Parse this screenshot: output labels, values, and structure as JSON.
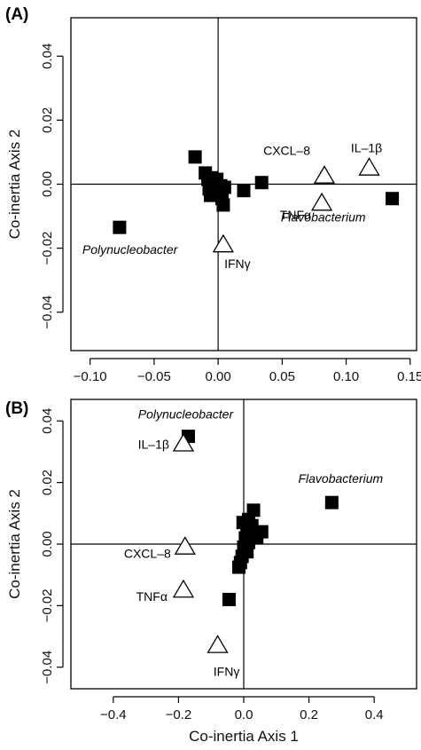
{
  "chart_data": [
    {
      "type": "scatter",
      "panel_label": "(A)",
      "xlabel": "",
      "ylabel": "Co-inertia Axis 2",
      "xlim": [
        -0.115,
        0.155
      ],
      "ylim": [
        -0.052,
        0.052
      ],
      "xticks": [
        -0.1,
        -0.05,
        0.0,
        0.05,
        0.1,
        0.15
      ],
      "xtick_labels": [
        "−0.10",
        "−0.05",
        "0.00",
        "0.05",
        "0.10",
        "0.15"
      ],
      "yticks": [
        -0.04,
        -0.02,
        0.0,
        0.02,
        0.04
      ],
      "ytick_labels": [
        "−0.04",
        "−0.02",
        "0.00",
        "0.02",
        "0.04"
      ],
      "grid": false,
      "series": [
        {
          "marker": "filled-square",
          "points": [
            {
              "x": -0.077,
              "y": -0.0135,
              "label": "Polynucleobacter"
            },
            {
              "x": -0.018,
              "y": 0.0085,
              "label": ""
            },
            {
              "x": -0.01,
              "y": 0.0035,
              "label": ""
            },
            {
              "x": -0.008,
              "y": 0.0015,
              "label": ""
            },
            {
              "x": -0.007,
              "y": -0.0015,
              "label": ""
            },
            {
              "x": -0.006,
              "y": -0.0035,
              "label": ""
            },
            {
              "x": -0.005,
              "y": 0.002,
              "label": ""
            },
            {
              "x": -0.004,
              "y": -0.002,
              "label": ""
            },
            {
              "x": -0.003,
              "y": 0.0005,
              "label": ""
            },
            {
              "x": -0.002,
              "y": -0.001,
              "label": ""
            },
            {
              "x": -0.001,
              "y": 0.0015,
              "label": ""
            },
            {
              "x": 0.001,
              "y": -0.0025,
              "label": ""
            },
            {
              "x": 0.002,
              "y": -0.0005,
              "label": ""
            },
            {
              "x": 0.003,
              "y": -0.0045,
              "label": ""
            },
            {
              "x": 0.004,
              "y": -0.0065,
              "label": ""
            },
            {
              "x": 0.005,
              "y": -0.001,
              "label": ""
            },
            {
              "x": 0.02,
              "y": -0.002,
              "label": ""
            },
            {
              "x": 0.034,
              "y": 0.0005,
              "label": ""
            },
            {
              "x": 0.136,
              "y": -0.0045,
              "label": "Flavobacterium"
            }
          ]
        },
        {
          "marker": "open-triangle",
          "points": [
            {
              "x": 0.083,
              "y": 0.0025,
              "label": "CXCL–8"
            },
            {
              "x": 0.118,
              "y": 0.005,
              "label": "IL–1β"
            },
            {
              "x": 0.081,
              "y": -0.006,
              "label": "TNFα"
            },
            {
              "x": 0.004,
              "y": -0.019,
              "label": "IFNγ"
            }
          ]
        }
      ]
    },
    {
      "type": "scatter",
      "panel_label": "(B)",
      "xlabel": "Co-inertia Axis 1",
      "ylabel": "Co-inertia Axis 2",
      "xlim": [
        -0.53,
        0.53
      ],
      "ylim": [
        -0.047,
        0.047
      ],
      "xticks": [
        -0.4,
        -0.2,
        0.0,
        0.2,
        0.4
      ],
      "xtick_labels": [
        "−0.4",
        "−0.2",
        "0.0",
        "0.2",
        "0.4"
      ],
      "yticks": [
        -0.04,
        -0.02,
        0.0,
        0.02,
        0.04
      ],
      "ytick_labels": [
        "−0.04",
        "−0.02",
        "0.00",
        "0.02",
        "0.04"
      ],
      "grid": false,
      "series": [
        {
          "marker": "filled-square",
          "points": [
            {
              "x": -0.17,
              "y": 0.035,
              "label": "Polynucleobacter"
            },
            {
              "x": 0.27,
              "y": 0.0135,
              "label": "Flavobacterium"
            },
            {
              "x": -0.045,
              "y": -0.018,
              "label": ""
            },
            {
              "x": 0.03,
              "y": 0.011,
              "label": ""
            },
            {
              "x": 0.015,
              "y": 0.008,
              "label": ""
            },
            {
              "x": 0.025,
              "y": 0.006,
              "label": ""
            },
            {
              "x": 0.01,
              "y": 0.005,
              "label": ""
            },
            {
              "x": 0.02,
              "y": 0.0035,
              "label": ""
            },
            {
              "x": 0.005,
              "y": 0.002,
              "label": ""
            },
            {
              "x": 0.015,
              "y": 0.0005,
              "label": ""
            },
            {
              "x": 0.0,
              "y": -0.001,
              "label": ""
            },
            {
              "x": 0.01,
              "y": -0.0025,
              "label": ""
            },
            {
              "x": -0.005,
              "y": -0.004,
              "label": ""
            },
            {
              "x": -0.01,
              "y": -0.006,
              "label": ""
            },
            {
              "x": -0.015,
              "y": -0.0075,
              "label": ""
            },
            {
              "x": 0.055,
              "y": 0.004,
              "label": ""
            },
            {
              "x": 0.04,
              "y": 0.002,
              "label": ""
            },
            {
              "x": -0.002,
              "y": 0.007,
              "label": ""
            }
          ]
        },
        {
          "marker": "open-triangle",
          "points": [
            {
              "x": -0.185,
              "y": 0.0325,
              "label": "IL–1β"
            },
            {
              "x": -0.18,
              "y": -0.001,
              "label": "CXCL–8"
            },
            {
              "x": -0.185,
              "y": -0.015,
              "label": "TNFα"
            },
            {
              "x": -0.08,
              "y": -0.033,
              "label": "IFNγ"
            }
          ]
        }
      ]
    }
  ]
}
